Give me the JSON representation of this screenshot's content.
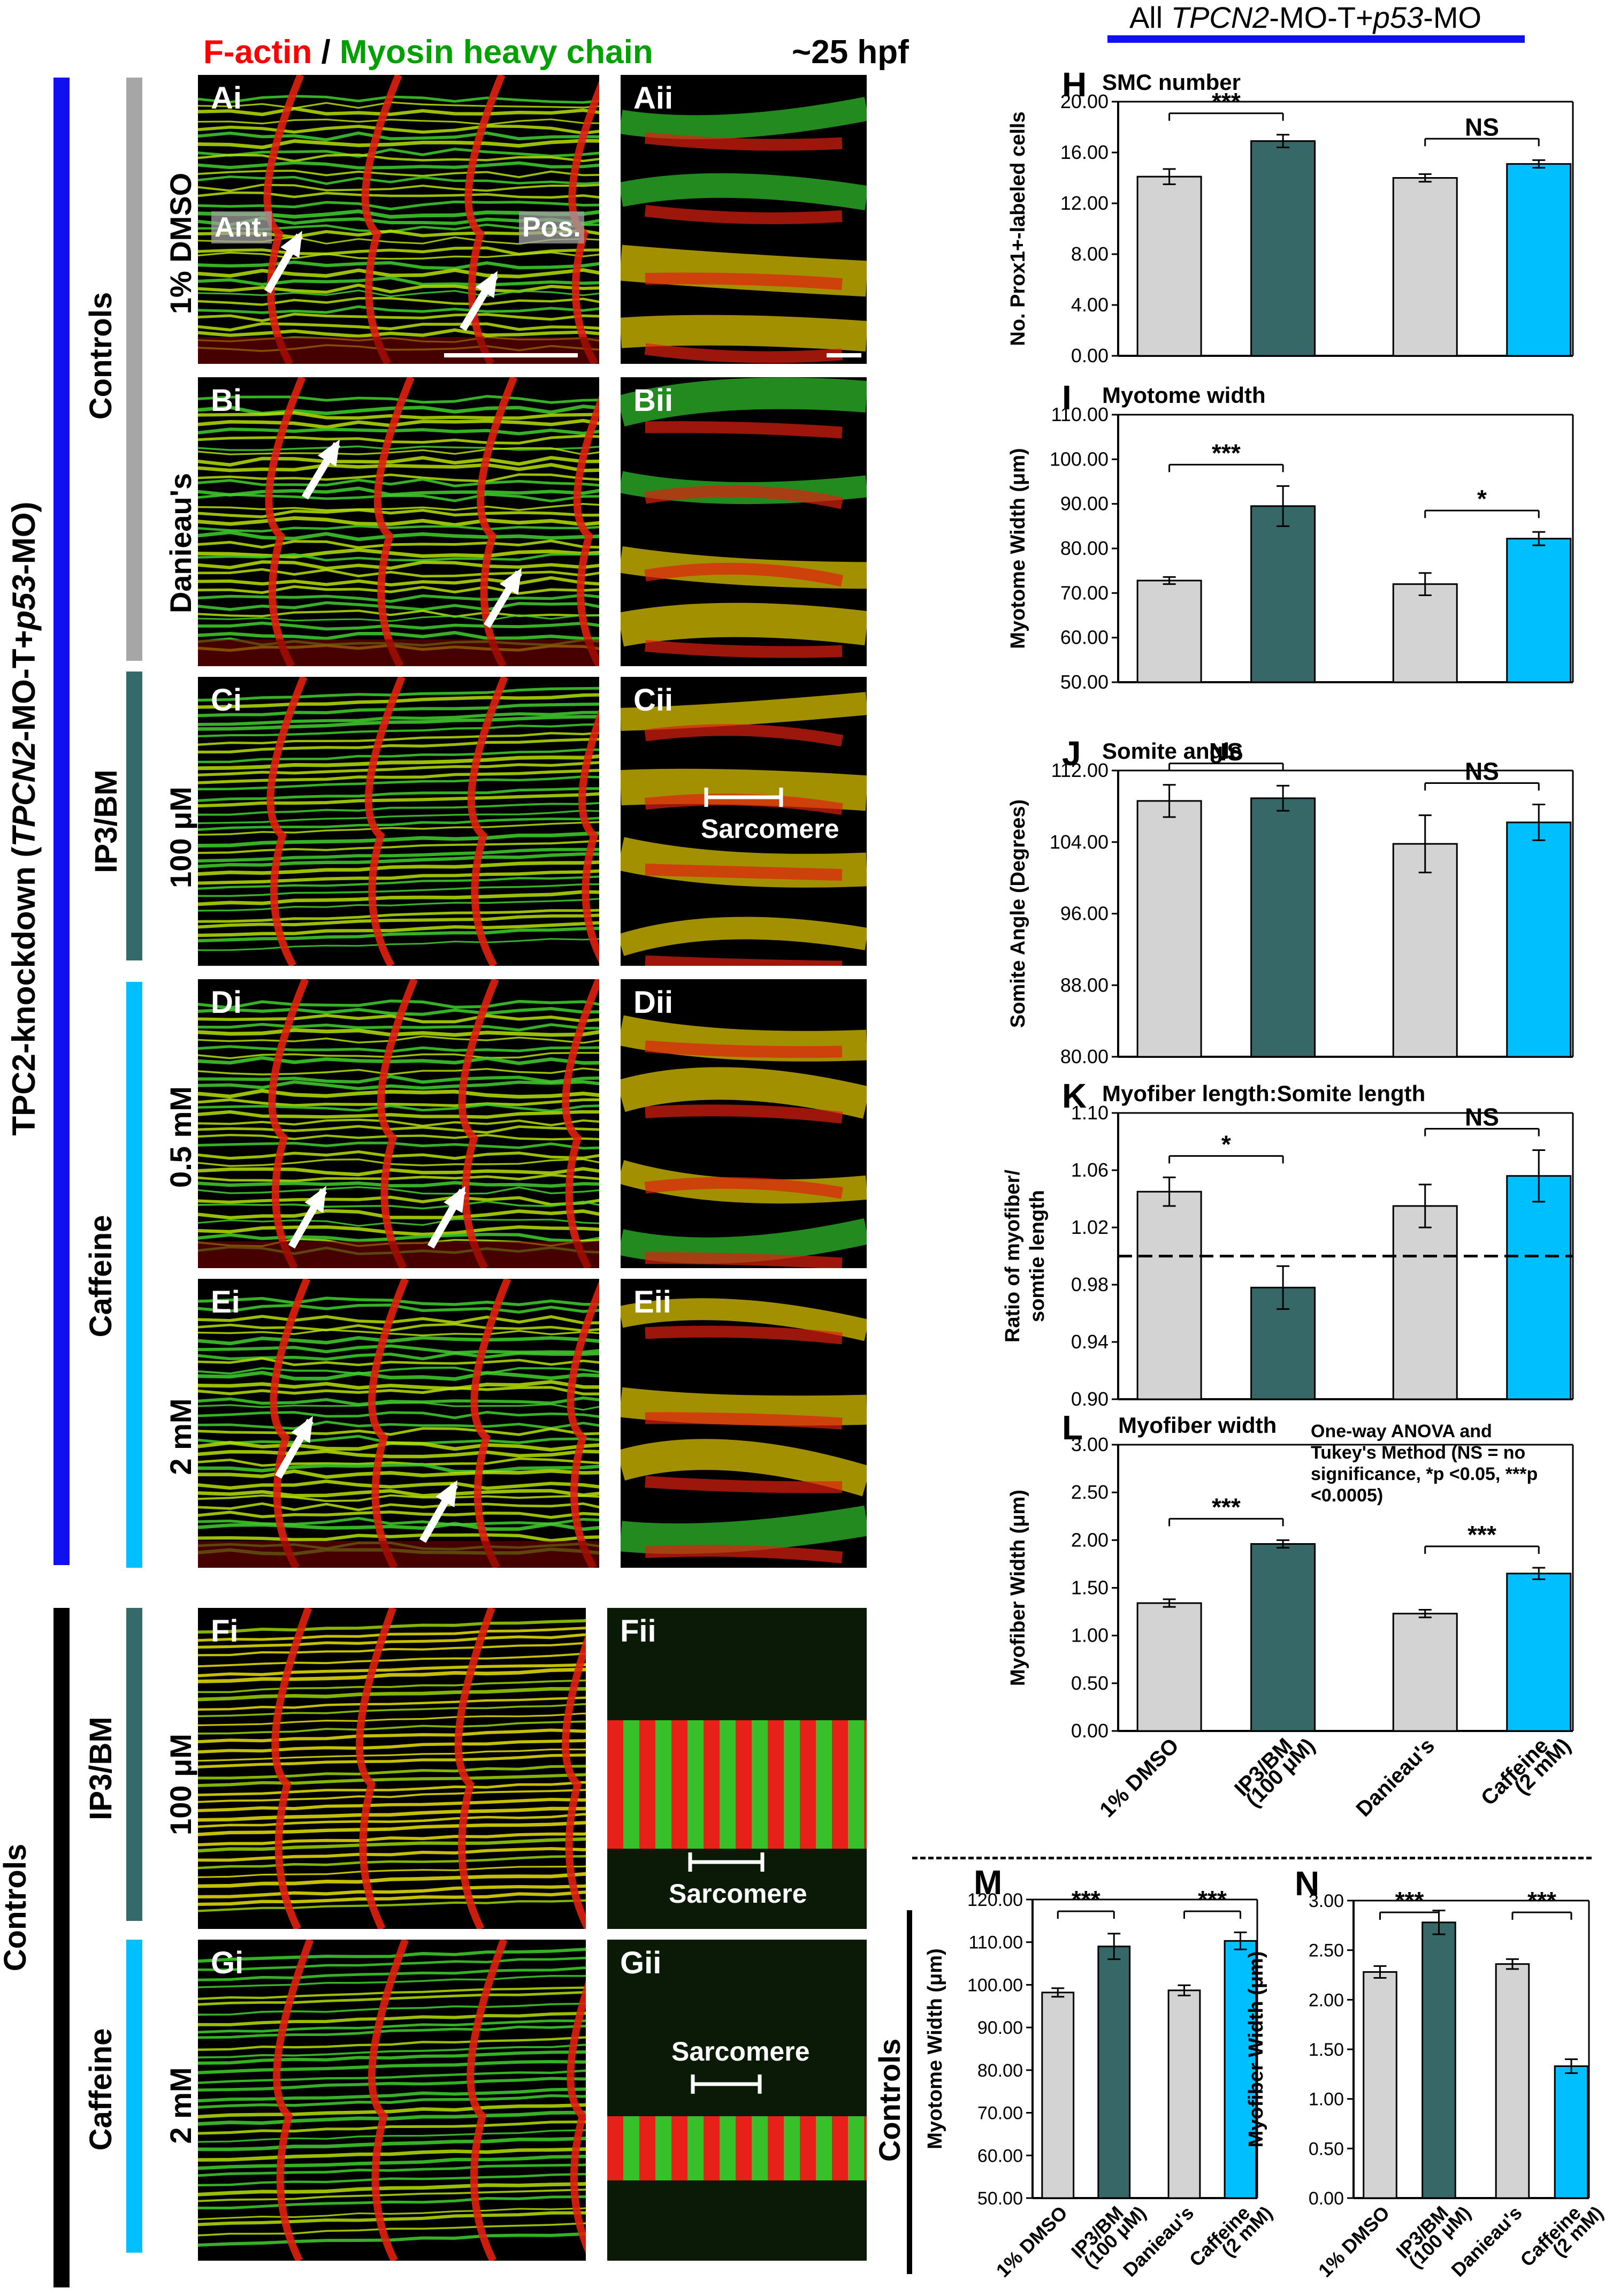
{
  "header": {
    "legend_red": "F-actin",
    "legend_slash": " / ",
    "legend_green": "Myosin heavy chain",
    "stage": "~25 hpf",
    "chart_group_title_pre": "All ",
    "chart_group_title_em": "TPCN2",
    "chart_group_title_mid": "-MO-T+",
    "chart_group_title_em2": "p53",
    "chart_group_title_post": "-MO"
  },
  "side_labels": {
    "knockdown_pre": "TPC2-knockdown (",
    "knockdown_em": "TPCN2",
    "knockdown_mid": "-MO-T+",
    "knockdown_em2": "p53",
    "knockdown_post": "-MO)",
    "controls_main": "Controls",
    "controls_sub": "Controls",
    "ip3bm": "IP3/BM",
    "ip3bm2": "IP3/BM",
    "caffeine": "Caffeine",
    "caffeine2": "Caffeine",
    "controls_m": "Controls"
  },
  "rows": {
    "a": {
      "condition": "1% DMSO",
      "left": "Ai",
      "right": "Aii",
      "ant": "Ant.",
      "pos": "Pos."
    },
    "b": {
      "condition": "Danieau's",
      "left": "Bi",
      "right": "Bii"
    },
    "c": {
      "condition": "100 μM",
      "left": "Ci",
      "right": "Cii",
      "annotation": "Sarcomere"
    },
    "d": {
      "condition": "0.5 mM",
      "left": "Di",
      "right": "Dii"
    },
    "e": {
      "condition": "2 mM",
      "left": "Ei",
      "right": "Eii"
    },
    "f": {
      "condition": "100 μM",
      "left": "Fi",
      "right": "Fii",
      "annotation": "Sarcomere"
    },
    "g": {
      "condition": "2 mM",
      "left": "Gi",
      "right": "Gii",
      "annotation": "Sarcomere"
    }
  },
  "colors": {
    "grey_bar": "#d3d3d3",
    "dark_teal": "#366868",
    "cyan": "#00bfff",
    "blue_side": "#1010f0",
    "grey_side": "#a6a6a6",
    "teal_side": "#356a6a",
    "cyan_side": "#00bfff",
    "black_side": "#000000",
    "red_text": "#ff0000",
    "green_text": "#00a000"
  },
  "chart_data": [
    {
      "panel": "H",
      "type": "bar",
      "title": "SMC number",
      "ylabel": "No. Prox1+-labeled cells",
      "ylim": [
        0,
        20
      ],
      "yticks": [
        "0.00",
        "4.00",
        "8.00",
        "12.00",
        "16.00",
        "20.00"
      ],
      "values": [
        14.1,
        16.9,
        14.0,
        15.1
      ],
      "errors": [
        0.6,
        0.5,
        0.3,
        0.3
      ],
      "sig": [
        "***",
        "NS"
      ]
    },
    {
      "panel": "I",
      "type": "bar",
      "title": "Myotome width",
      "ylabel": "Myotome Width (μm)",
      "ylim": [
        50,
        110
      ],
      "yticks": [
        "50.00",
        "60.00",
        "70.00",
        "80.00",
        "90.00",
        "100.00",
        "110.00"
      ],
      "values": [
        72.8,
        89.5,
        72.0,
        82.2
      ],
      "errors": [
        0.8,
        4.5,
        2.5,
        1.5
      ],
      "sig": [
        "***",
        "*"
      ]
    },
    {
      "panel": "J",
      "type": "bar",
      "title": "Somite angle",
      "ylabel": "Somite Angle (Degrees)",
      "ylim": [
        80,
        112
      ],
      "yticks": [
        "80.00",
        "88.00",
        "96.00",
        "104.00",
        "112.00"
      ],
      "values": [
        108.6,
        108.9,
        103.8,
        106.2
      ],
      "errors": [
        1.8,
        1.4,
        3.2,
        2.0
      ],
      "sig": [
        "NS",
        "NS"
      ]
    },
    {
      "panel": "K",
      "type": "bar",
      "title": "Myofiber length:Somite length",
      "ylabel": "Ratio of myofiber/ somtie length",
      "ylim": [
        0.9,
        1.1
      ],
      "yticks": [
        "0.90",
        "0.94",
        "0.98",
        "1.02",
        "1.06",
        "1.10"
      ],
      "values": [
        1.045,
        0.978,
        1.035,
        1.056
      ],
      "errors": [
        0.01,
        0.015,
        0.015,
        0.018
      ],
      "reference_line": 1.0,
      "sig": [
        "*",
        "NS"
      ]
    },
    {
      "panel": "L",
      "type": "bar",
      "title": "Myofiber width",
      "ylabel": "Myofiber Width (μm)",
      "ylim": [
        0,
        3
      ],
      "yticks": [
        "0.00",
        "0.50",
        "1.00",
        "1.50",
        "2.00",
        "2.50",
        "3.00"
      ],
      "values": [
        1.34,
        1.96,
        1.23,
        1.65
      ],
      "errors": [
        0.04,
        0.04,
        0.04,
        0.06
      ],
      "sig": [
        "***",
        "***"
      ],
      "categories": [
        "1% DMSO",
        "IP3/BM (100 μM)",
        "Danieau's",
        "Caffeine (2 mM)"
      ],
      "note": "One-way ANOVA and Tukey's Method (NS = no significance, *p <0.05, ***p <0.0005)"
    },
    {
      "panel": "M",
      "type": "bar",
      "title": "",
      "ylabel": "Myotome Width (μm)",
      "ylim": [
        50,
        120
      ],
      "yticks": [
        "50.00",
        "60.00",
        "70.00",
        "80.00",
        "90.00",
        "100.00",
        "110.00",
        "120.00"
      ],
      "values": [
        98.2,
        109.0,
        98.7,
        110.3
      ],
      "errors": [
        1.0,
        3.0,
        1.2,
        2.0
      ],
      "sig": [
        "***",
        "***"
      ],
      "categories": [
        "1% DMSO",
        "IP3/BM (100 μM)",
        "Danieau's",
        "Caffeine (2 mM)"
      ]
    },
    {
      "panel": "N",
      "type": "bar",
      "title": "",
      "ylabel": "Myofiber Width (μm)",
      "ylim": [
        0,
        3
      ],
      "yticks": [
        "0.00",
        "0.50",
        "1.00",
        "1.50",
        "2.00",
        "2.50",
        "3.00"
      ],
      "values": [
        2.28,
        2.78,
        2.36,
        1.33
      ],
      "errors": [
        0.06,
        0.12,
        0.05,
        0.07
      ],
      "sig": [
        "***",
        "***"
      ],
      "categories": [
        "1% DMSO",
        "IP3/BM (100 μM)",
        "Danieau's",
        "Caffeine (2 mM)"
      ]
    }
  ]
}
